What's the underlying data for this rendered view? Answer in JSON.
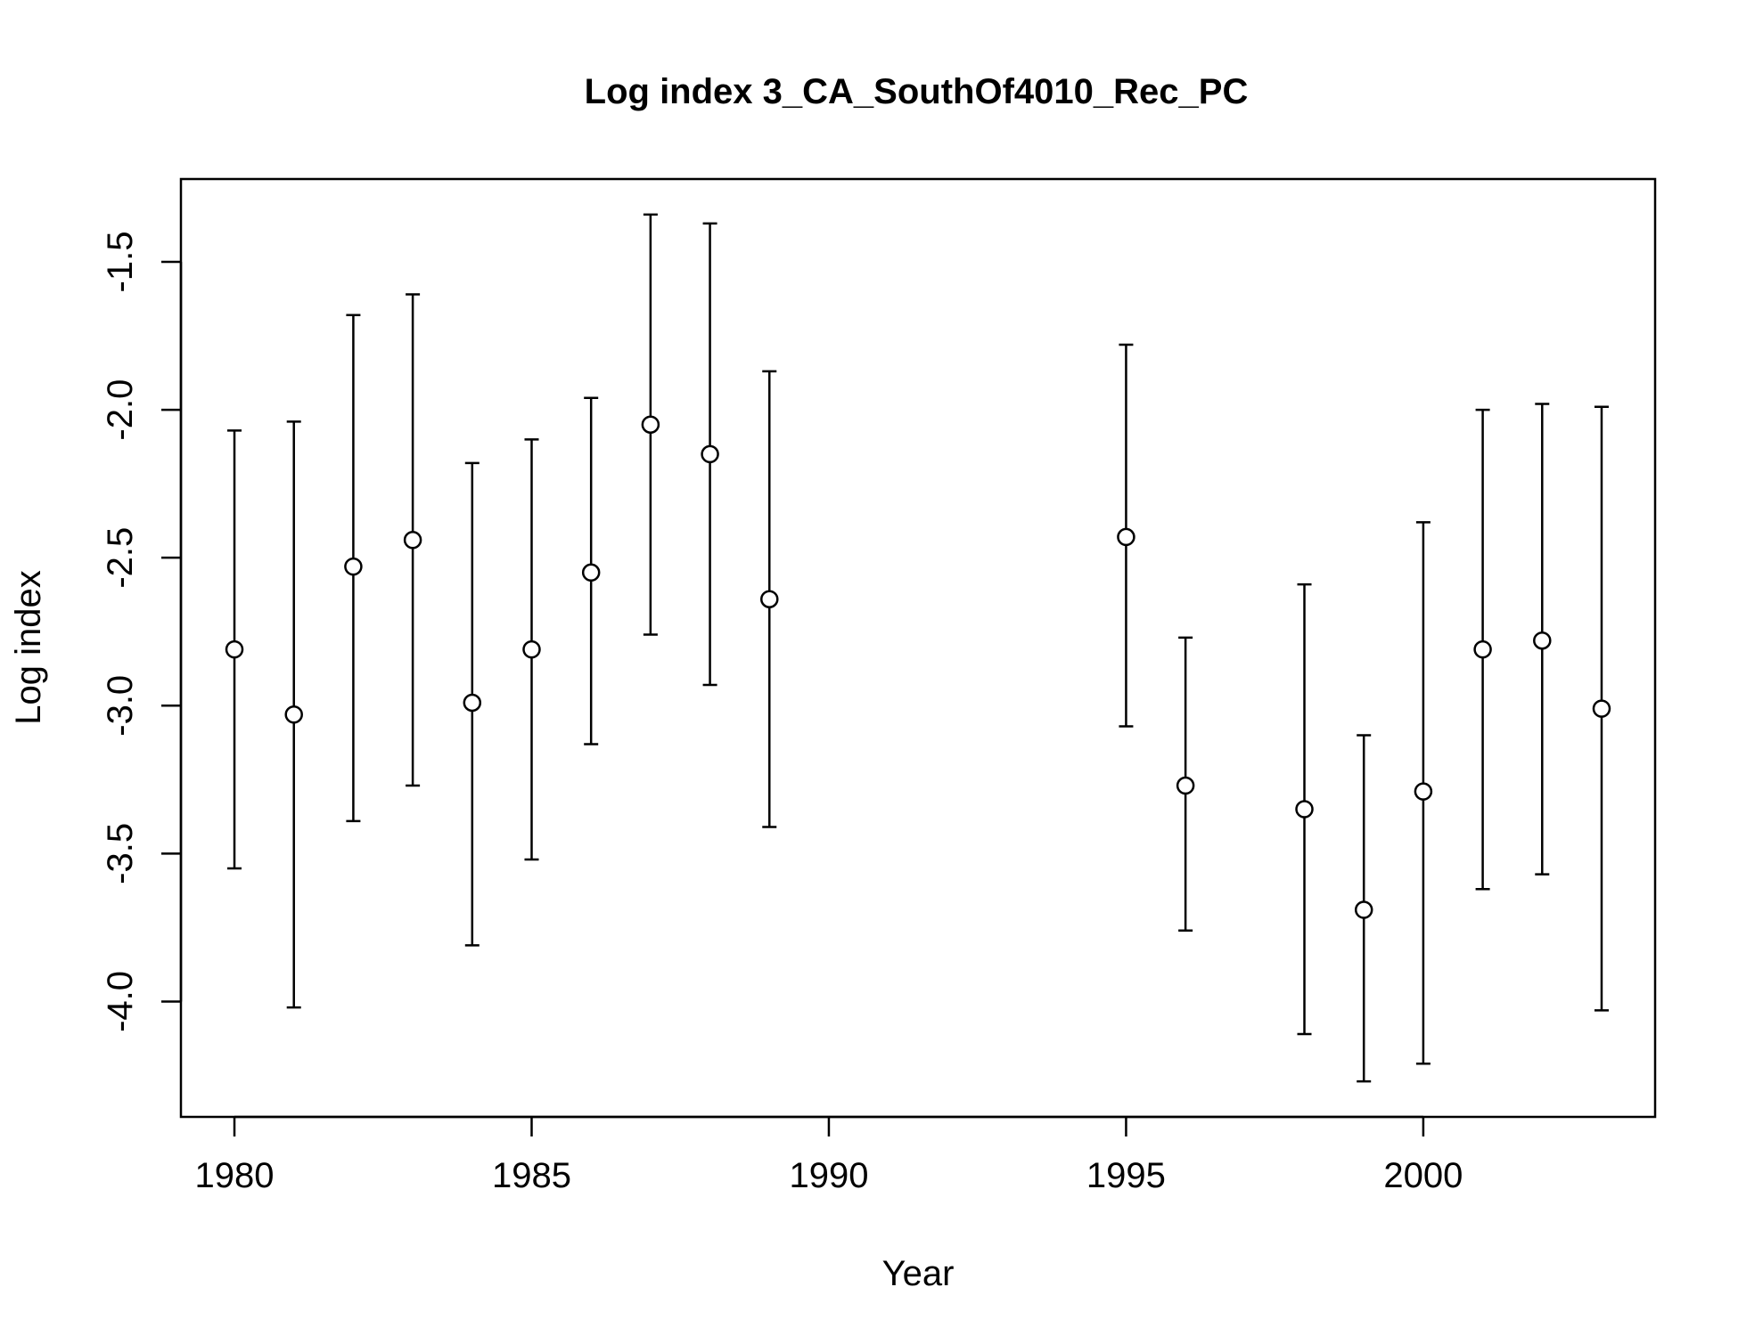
{
  "chart_data": {
    "type": "scatter",
    "title": "Log index 3_CA_SouthOf4010_Rec_PC",
    "xlabel": "Year",
    "ylabel": "Log index",
    "xlim": [
      1979.1,
      2003.9
    ],
    "ylim": [
      -4.39,
      -1.22
    ],
    "xticks": [
      1980,
      1985,
      1990,
      1995,
      2000
    ],
    "xtick_labels": [
      "1980",
      "1985",
      "1990",
      "1995",
      "2000"
    ],
    "yticks": [
      -4.0,
      -3.5,
      -3.0,
      -2.5,
      -2.0,
      -1.5
    ],
    "ytick_labels": [
      "-4.0",
      "-3.5",
      "-3.0",
      "-2.5",
      "-2.0",
      "-1.5"
    ],
    "grid": false,
    "legend": "none",
    "points": [
      {
        "x": 1980,
        "y": -2.81,
        "lower": -3.55,
        "upper": -2.07
      },
      {
        "x": 1981,
        "y": -3.03,
        "lower": -4.02,
        "upper": -2.04
      },
      {
        "x": 1982,
        "y": -2.53,
        "lower": -3.39,
        "upper": -1.68
      },
      {
        "x": 1983,
        "y": -2.44,
        "lower": -3.27,
        "upper": -1.61
      },
      {
        "x": 1984,
        "y": -2.99,
        "lower": -3.81,
        "upper": -2.18
      },
      {
        "x": 1985,
        "y": -2.81,
        "lower": -3.52,
        "upper": -2.1
      },
      {
        "x": 1986,
        "y": -2.55,
        "lower": -3.13,
        "upper": -1.96
      },
      {
        "x": 1987,
        "y": -2.05,
        "lower": -2.76,
        "upper": -1.34
      },
      {
        "x": 1988,
        "y": -2.15,
        "lower": -2.93,
        "upper": -1.37
      },
      {
        "x": 1989,
        "y": -2.64,
        "lower": -3.41,
        "upper": -1.87
      },
      {
        "x": 1995,
        "y": -2.43,
        "lower": -3.07,
        "upper": -1.78
      },
      {
        "x": 1996,
        "y": -3.27,
        "lower": -3.76,
        "upper": -2.77
      },
      {
        "x": 1998,
        "y": -3.35,
        "lower": -4.11,
        "upper": -2.59
      },
      {
        "x": 1999,
        "y": -3.69,
        "lower": -4.27,
        "upper": -3.1
      },
      {
        "x": 2000,
        "y": -3.29,
        "lower": -4.21,
        "upper": -2.38
      },
      {
        "x": 2001,
        "y": -2.81,
        "lower": -3.62,
        "upper": -2.0
      },
      {
        "x": 2002,
        "y": -2.78,
        "lower": -3.57,
        "upper": -1.98
      },
      {
        "x": 2003,
        "y": -3.01,
        "lower": -4.03,
        "upper": -1.99
      }
    ]
  }
}
